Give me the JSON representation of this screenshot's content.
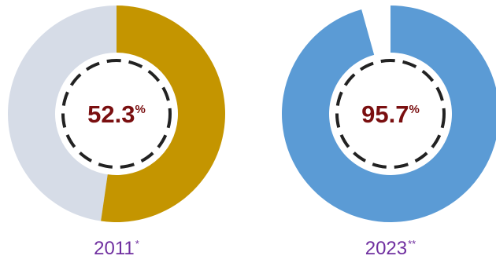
{
  "chart_data": [
    {
      "type": "pie",
      "title": "",
      "values": [
        52.3,
        47.7
      ],
      "value_label": "52.3",
      "unit": "%",
      "year": "2011",
      "footnote_mark": "*",
      "colors": {
        "filled": "#c49500",
        "remainder": "#d6dce7",
        "value_text": "#7a0f10",
        "year_text": "#7030a0"
      }
    },
    {
      "type": "pie",
      "title": "",
      "values": [
        95.7,
        4.3
      ],
      "value_label": "95.7",
      "unit": "%",
      "year": "2023",
      "footnote_mark": "**",
      "colors": {
        "filled": "#5b9bd5",
        "remainder": "#ffffff",
        "value_text": "#7a0f10",
        "year_text": "#7030a0"
      }
    }
  ]
}
